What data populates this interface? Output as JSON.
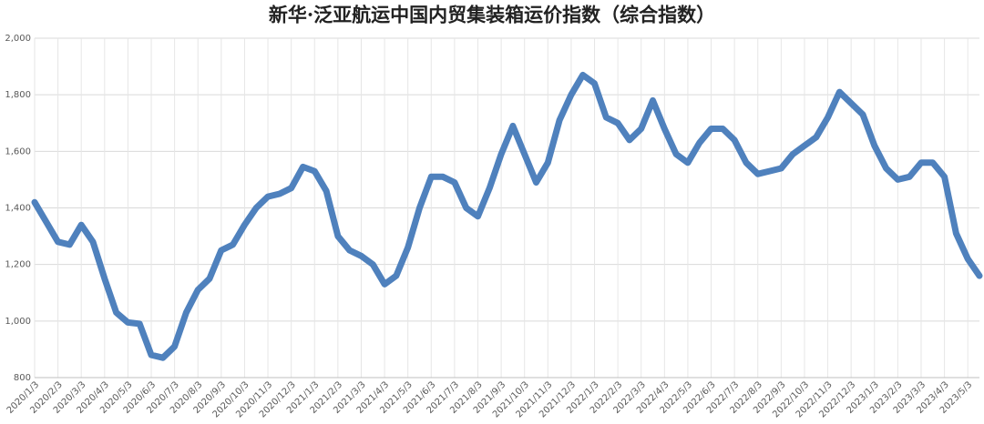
{
  "chart_data": {
    "type": "line",
    "title": "新华·泛亚航运中国内贸集装箱运价指数（综合指数）",
    "categories": [
      "2020/1/3",
      null,
      "2020/2/3",
      null,
      "2020/3/3",
      null,
      "2020/4/3",
      null,
      "2020/5/3",
      null,
      "2020/6/3",
      null,
      "2020/7/3",
      null,
      "2020/8/3",
      null,
      "2020/9/3",
      null,
      "2020/10/3",
      null,
      "2020/11/3",
      null,
      "2020/12/3",
      null,
      "2021/1/3",
      null,
      "2021/2/3",
      null,
      "2021/3/3",
      null,
      "2021/4/3",
      null,
      "2021/5/3",
      null,
      "2021/6/3",
      null,
      "2021/7/3",
      null,
      "2021/8/3",
      null,
      "2021/9/3",
      null,
      "2021/10/3",
      null,
      "2021/11/3",
      null,
      "2021/12/3",
      null,
      "2022/1/3",
      null,
      "2022/2/3",
      null,
      "2022/3/3",
      null,
      "2022/4/3",
      null,
      "2022/5/3",
      null,
      "2022/6/3",
      null,
      "2022/7/3",
      null,
      "2022/8/3",
      null,
      "2022/9/3",
      null,
      "2022/10/3",
      null,
      "2022/11/3",
      null,
      "2022/12/3",
      null,
      "2023/1/3",
      null,
      "2023/2/3",
      null,
      "2023/3/3",
      null,
      "2023/4/3",
      null,
      "2023/5/3",
      null
    ],
    "series": [
      {
        "name": "综合指数",
        "color": "#4f81bd",
        "values": [
          1420,
          1350,
          1280,
          1270,
          1340,
          1280,
          1150,
          1030,
          995,
          990,
          880,
          870,
          910,
          1030,
          1110,
          1150,
          1250,
          1270,
          1340,
          1400,
          1440,
          1450,
          1470,
          1545,
          1530,
          1460,
          1300,
          1250,
          1230,
          1200,
          1130,
          1160,
          1260,
          1400,
          1510,
          1510,
          1490,
          1400,
          1370,
          1470,
          1590,
          1690,
          1590,
          1490,
          1560,
          1710,
          1800,
          1870,
          1840,
          1720,
          1700,
          1640,
          1680,
          1780,
          1680,
          1590,
          1560,
          1630,
          1680,
          1680,
          1640,
          1560,
          1520,
          1530,
          1540,
          1590,
          1620,
          1650,
          1720,
          1810,
          1770,
          1730,
          1620,
          1540,
          1500,
          1510,
          1560,
          1560,
          1510,
          1310,
          1220,
          1160
        ]
      }
    ],
    "ylim": [
      800,
      2000
    ],
    "yticks": [
      800,
      {
        "value": 1000,
        "label": "1,000"
      },
      {
        "value": 1200,
        "label": "1,200"
      },
      {
        "value": 1400,
        "label": "1,400"
      },
      {
        "value": 1600,
        "label": "1,600"
      },
      {
        "value": 1800,
        "label": "1,800"
      },
      {
        "value": 2000,
        "label": "2,000"
      }
    ],
    "grid": true
  }
}
